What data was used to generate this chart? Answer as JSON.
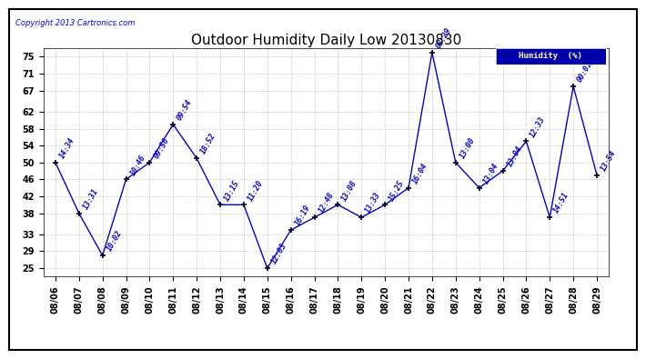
{
  "title": "Outdoor Humidity Daily Low 20130830",
  "copyright": "Copyright 2013 Cartronics.com",
  "legend_label": "Humidity  (%)",
  "ylabel_ticks": [
    25,
    29,
    33,
    38,
    42,
    46,
    50,
    54,
    58,
    62,
    67,
    71,
    75
  ],
  "xlabels": [
    "08/06",
    "08/07",
    "08/08",
    "08/09",
    "08/10",
    "08/11",
    "08/12",
    "08/13",
    "08/14",
    "08/15",
    "08/16",
    "08/17",
    "08/18",
    "08/19",
    "08/20",
    "08/21",
    "08/22",
    "08/23",
    "08/24",
    "08/25",
    "08/26",
    "08/27",
    "08/28",
    "08/29"
  ],
  "x_indices": [
    0,
    1,
    2,
    3,
    4,
    5,
    6,
    7,
    8,
    9,
    10,
    11,
    12,
    13,
    14,
    15,
    16,
    17,
    18,
    19,
    20,
    21,
    22,
    23
  ],
  "y_values": [
    50,
    38,
    28,
    46,
    50,
    59,
    51,
    40,
    40,
    25,
    34,
    37,
    40,
    37,
    40,
    44,
    76,
    50,
    44,
    48,
    55,
    37,
    68,
    47
  ],
  "time_labels": [
    "14:34",
    "13:31",
    "10:02",
    "10:46",
    "09:56",
    "09:54",
    "18:52",
    "13:15",
    "11:20",
    "12:03",
    "16:19",
    "12:48",
    "13:08",
    "13:33",
    "15:25",
    "16:04",
    "08:29",
    "13:00",
    "13:04",
    "13:04",
    "12:33",
    "14:51",
    "00:01",
    "13:54"
  ],
  "line_color": "#0000cc",
  "marker_color": "#000022",
  "background_color": "#ffffff",
  "grid_color": "#cccccc",
  "title_fontsize": 11,
  "tick_fontsize": 7,
  "time_label_fontsize": 6,
  "ylim": [
    23,
    77
  ],
  "xlim": [
    -0.5,
    23.5
  ]
}
